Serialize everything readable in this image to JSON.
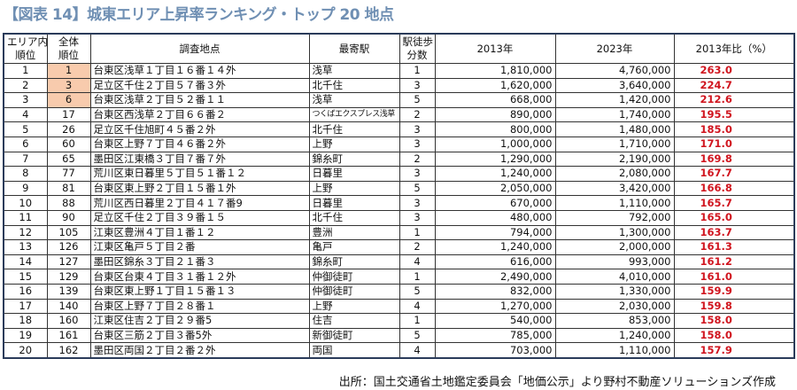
{
  "title": "【図表 14】城東エリア上昇率ランキング・トップ 20 地点",
  "headers": {
    "area_rank": [
      "エリア内",
      "順位"
    ],
    "overall_rank": [
      "全体",
      "順位"
    ],
    "location": "調査地点",
    "station": "最寄駅",
    "walk": [
      "駅徒歩",
      "分数"
    ],
    "y2013": "2013年",
    "y2023": "2023年",
    "ratio": "2013年比（%）"
  },
  "colors": {
    "highlight": "#f8cbad",
    "ratio_text": "#d0141e",
    "title": "#6f8fb3"
  },
  "rows": [
    {
      "area_rank": "1",
      "overall_rank": "1",
      "location": "台東区浅草１丁目１６番１４外",
      "station": "浅草",
      "walk": "1",
      "y2013": "1,810,000",
      "y2023": "4,760,000",
      "ratio": "263.0",
      "highlight": true
    },
    {
      "area_rank": "2",
      "overall_rank": "3",
      "location": "足立区千住２丁目５７番３外",
      "station": "北千住",
      "walk": "3",
      "y2013": "1,620,000",
      "y2023": "3,640,000",
      "ratio": "224.7",
      "highlight": true
    },
    {
      "area_rank": "3",
      "overall_rank": "6",
      "location": "台東区浅草２丁目５２番１１",
      "station": "浅草",
      "walk": "5",
      "y2013": "668,000",
      "y2023": "1,420,000",
      "ratio": "212.6",
      "highlight": true
    },
    {
      "area_rank": "4",
      "overall_rank": "17",
      "location": "台東区西浅草２丁目６６番２",
      "station": "つくばエクスプレス浅草",
      "walk": "2",
      "y2013": "890,000",
      "y2023": "1,740,000",
      "ratio": "195.5"
    },
    {
      "area_rank": "5",
      "overall_rank": "26",
      "location": "足立区千住旭町４５番２外",
      "station": "北千住",
      "walk": "3",
      "y2013": "800,000",
      "y2023": "1,480,000",
      "ratio": "185.0"
    },
    {
      "area_rank": "6",
      "overall_rank": "60",
      "location": "台東区上野７丁目４６番２外",
      "station": "上野",
      "walk": "3",
      "y2013": "1,000,000",
      "y2023": "1,710,000",
      "ratio": "171.0"
    },
    {
      "area_rank": "7",
      "overall_rank": "65",
      "location": "墨田区江東橋３丁目７番７外",
      "station": "錦糸町",
      "walk": "2",
      "y2013": "1,290,000",
      "y2023": "2,190,000",
      "ratio": "169.8"
    },
    {
      "area_rank": "8",
      "overall_rank": "77",
      "location": "荒川区東日暮里５丁目５１番１２",
      "station": "日暮里",
      "walk": "3",
      "y2013": "1,240,000",
      "y2023": "2,080,000",
      "ratio": "167.7"
    },
    {
      "area_rank": "9",
      "overall_rank": "81",
      "location": "台東区東上野２丁目１５番１外",
      "station": "上野",
      "walk": "5",
      "y2013": "2,050,000",
      "y2023": "3,420,000",
      "ratio": "166.8"
    },
    {
      "area_rank": "10",
      "overall_rank": "88",
      "location": "荒川区西日暮里２丁目４１７番9",
      "station": "日暮里",
      "walk": "3",
      "y2013": "670,000",
      "y2023": "1,110,000",
      "ratio": "165.7"
    },
    {
      "area_rank": "11",
      "overall_rank": "90",
      "location": "足立区千住２丁目３９番１５",
      "station": "北千住",
      "walk": "3",
      "y2013": "480,000",
      "y2023": "792,000",
      "ratio": "165.0"
    },
    {
      "area_rank": "12",
      "overall_rank": "105",
      "location": "江東区豊洲４丁目１番１２",
      "station": "豊洲",
      "walk": "1",
      "y2013": "794,000",
      "y2023": "1,300,000",
      "ratio": "163.7"
    },
    {
      "area_rank": "13",
      "overall_rank": "126",
      "location": "江東区亀戸５丁目２番",
      "station": "亀戸",
      "walk": "2",
      "y2013": "1,240,000",
      "y2023": "2,000,000",
      "ratio": "161.3"
    },
    {
      "area_rank": "14",
      "overall_rank": "127",
      "location": "墨田区錦糸３丁目２１番３",
      "station": "錦糸町",
      "walk": "4",
      "y2013": "616,000",
      "y2023": "993,000",
      "ratio": "161.2"
    },
    {
      "area_rank": "15",
      "overall_rank": "129",
      "location": "台東区台東４丁目３１番１２外",
      "station": "仲御徒町",
      "walk": "1",
      "y2013": "2,490,000",
      "y2023": "4,010,000",
      "ratio": "161.0"
    },
    {
      "area_rank": "16",
      "overall_rank": "139",
      "location": "台東区東上野１丁目１５番１３",
      "station": "仲御徒町",
      "walk": "5",
      "y2013": "832,000",
      "y2023": "1,330,000",
      "ratio": "159.9"
    },
    {
      "area_rank": "17",
      "overall_rank": "140",
      "location": "台東区上野７丁目２８番１",
      "station": "上野",
      "walk": "4",
      "y2013": "1,270,000",
      "y2023": "2,030,000",
      "ratio": "159.8"
    },
    {
      "area_rank": "18",
      "overall_rank": "160",
      "location": "江東区住吉２丁目２９番5",
      "station": "住吉",
      "walk": "1",
      "y2013": "540,000",
      "y2023": "853,000",
      "ratio": "158.0"
    },
    {
      "area_rank": "19",
      "overall_rank": "161",
      "location": "台東区三筋２丁目３番5外",
      "station": "新御徒町",
      "walk": "5",
      "y2013": "785,000",
      "y2023": "1,240,000",
      "ratio": "158.0"
    },
    {
      "area_rank": "20",
      "overall_rank": "162",
      "location": "墨田区両国２丁目２番２外",
      "station": "両国",
      "walk": "4",
      "y2013": "703,000",
      "y2023": "1,110,000",
      "ratio": "157.9"
    }
  ],
  "source": "出所：国土交通省土地鑑定委員会「地価公示」より野村不動産ソリューションズ作成"
}
